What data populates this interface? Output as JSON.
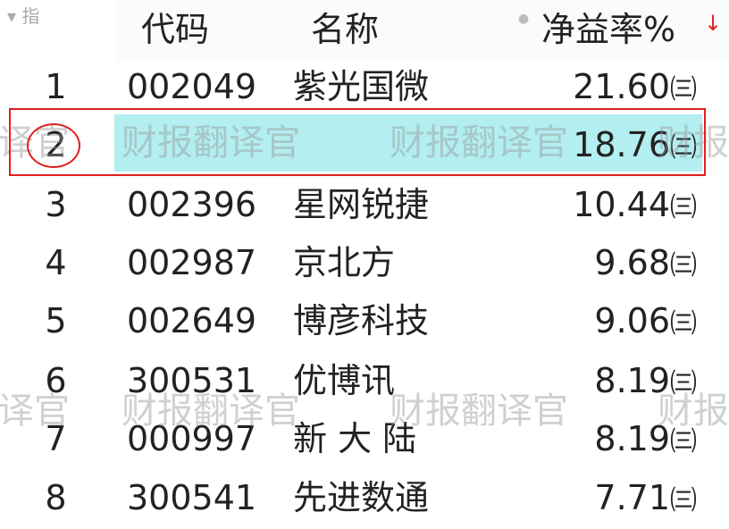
{
  "header": {
    "filter_label": "指",
    "columns": [
      "代码",
      "名称",
      "净益率%"
    ],
    "sort_direction": "descending",
    "sort_icon": "down-arrow-icon"
  },
  "rows": [
    {
      "index": "1",
      "code": "002049",
      "name": "紫光国微",
      "value": "21.60",
      "tag": "㈢"
    },
    {
      "index": "2",
      "code": "",
      "name": "",
      "value": "18.76",
      "tag": "㈢"
    },
    {
      "index": "3",
      "code": "002396",
      "name": "星网锐捷",
      "value": "10.44",
      "tag": "㈢"
    },
    {
      "index": "4",
      "code": "002987",
      "name": "京北方",
      "value": "9.68",
      "tag": "㈢"
    },
    {
      "index": "5",
      "code": "002649",
      "name": "博彦科技",
      "value": "9.06",
      "tag": "㈢"
    },
    {
      "index": "6",
      "code": "300531",
      "name": "优博讯",
      "value": "8.19",
      "tag": "㈢"
    },
    {
      "index": "7",
      "code": "000997",
      "name": "新 大 陆",
      "value": "8.19",
      "tag": "㈢"
    },
    {
      "index": "8",
      "code": "300541",
      "name": "先进数通",
      "value": "7.71",
      "tag": "㈢"
    }
  ],
  "watermark": {
    "text": "财报翻译官",
    "fragment_left": "译官",
    "fragment_right": "财报"
  },
  "colors": {
    "highlight": "#b3eef0",
    "annotation": "#e02020"
  }
}
